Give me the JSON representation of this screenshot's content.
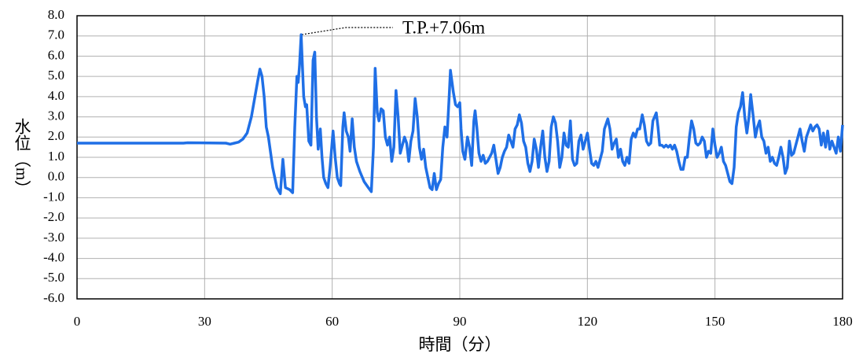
{
  "chart_data": {
    "type": "line",
    "xlabel": "時間（分）",
    "ylabel": "水位（m）",
    "annotation": "T.P.+7.06m",
    "color": "#1f6fe6",
    "grid": true,
    "xlim": [
      0,
      180
    ],
    "xticks": [
      0,
      30,
      60,
      90,
      120,
      150,
      180
    ],
    "ylim": [
      -6,
      8
    ],
    "yticks": [
      {
        "value": 8,
        "label": "8.0"
      },
      {
        "value": 7,
        "label": "7.0"
      },
      {
        "value": 6,
        "label": "6.0"
      },
      {
        "value": 5,
        "label": "5.0"
      },
      {
        "value": 4,
        "label": "4.0"
      },
      {
        "value": 3,
        "label": "3.0"
      },
      {
        "value": 2,
        "label": "2.0"
      },
      {
        "value": 1,
        "label": "1.0"
      },
      {
        "value": 0,
        "label": "0.0"
      },
      {
        "value": -1,
        "label": "-1.0"
      },
      {
        "value": -2,
        "label": "-2.0"
      },
      {
        "value": -3,
        "label": "-3.0"
      },
      {
        "value": -4,
        "label": "-4.0"
      },
      {
        "value": -5,
        "label": "-5.0"
      },
      {
        "value": -6,
        "label": "-6.0"
      }
    ],
    "x": [
      0,
      25,
      26,
      35,
      36,
      37,
      38,
      39,
      40,
      41,
      42,
      42.5,
      43,
      43.5,
      44,
      44.5,
      45,
      46,
      47,
      47.8,
      48.4,
      49,
      50,
      50.7,
      51.2,
      51.7,
      52,
      52.3,
      52.7,
      53,
      53.3,
      53.7,
      54,
      54.5,
      55,
      55.5,
      55.9,
      56.3,
      56.7,
      57.2,
      57.6,
      58,
      58.5,
      59,
      59.5,
      60.2,
      60.7,
      61.2,
      61.7,
      62,
      62.5,
      62.8,
      63.3,
      63.8,
      64.2,
      64.7,
      65.2,
      65.7,
      66.5,
      67.5,
      68.5,
      69.2,
      69.7,
      70.1,
      70.6,
      71,
      71.5,
      72,
      72.5,
      73,
      73.5,
      74,
      74.5,
      75,
      75.5,
      76,
      76.5,
      77,
      77.5,
      78,
      78.5,
      79,
      79.5,
      80,
      80.5,
      81,
      81.5,
      82,
      82.5,
      83,
      83.5,
      84,
      84.5,
      85,
      85.5,
      86,
      86.5,
      87,
      87.5,
      87.8,
      88.5,
      89,
      89.5,
      90,
      90.3,
      90.7,
      91.2,
      91.8,
      92.3,
      92.8,
      93.3,
      93.6,
      94,
      94.5,
      95,
      95.5,
      96,
      96.5,
      97.5,
      98,
      98.5,
      99,
      99.5,
      100,
      100.5,
      101,
      101.5,
      102,
      102.5,
      103,
      103.5,
      104,
      104.5,
      105,
      105.5,
      106,
      106.5,
      107,
      107.5,
      108,
      108.5,
      109,
      109.5,
      110,
      110.5,
      111,
      111.5,
      112,
      112.5,
      113,
      113.5,
      114,
      114.5,
      115,
      115.5,
      116,
      116.5,
      117,
      117.5,
      118,
      118.5,
      119,
      119.5,
      120,
      120.5,
      121,
      121.5,
      122,
      122.5,
      123,
      123.5,
      124,
      124.8,
      125.3,
      125.8,
      126.3,
      126.8,
      127.3,
      127.8,
      128.3,
      128.8,
      129.3,
      129.8,
      130.3,
      130.8,
      131.3,
      131.8,
      132.3,
      132.9,
      133.4,
      133.9,
      134.4,
      134.9,
      135.4,
      135.8,
      136.2,
      136.6,
      137,
      137.5,
      138,
      138.5,
      139,
      139.5,
      140,
      140.5,
      141,
      141.5,
      142,
      142.5,
      143,
      143.5,
      144,
      144.5,
      145,
      145.5,
      146,
      146.5,
      147,
      147.5,
      148,
      148.5,
      149,
      149.5,
      150,
      150.5,
      151,
      151.5,
      152,
      152.5,
      153,
      153.5,
      154,
      154.5,
      155,
      155.5,
      156,
      156.5,
      157,
      157.5,
      158,
      158.4,
      159,
      159.5,
      160,
      160.5,
      161,
      161.5,
      162,
      162.5,
      163,
      163.5,
      164,
      164.5,
      165,
      165.5,
      166,
      166.5,
      167,
      167.5,
      168,
      168.5,
      169,
      169.5,
      170,
      170.5,
      171,
      171.5,
      172,
      172.5,
      173,
      173.5,
      174,
      174.5,
      175,
      175.5,
      176,
      176.5,
      177,
      177.5,
      178,
      178.5,
      179,
      179.5,
      180
    ],
    "values": [
      1.7,
      1.7,
      1.72,
      1.7,
      1.65,
      1.7,
      1.75,
      1.9,
      2.2,
      3.0,
      4.2,
      4.8,
      5.36,
      5.0,
      4.0,
      2.5,
      2.0,
      0.5,
      -0.5,
      -0.8,
      0.9,
      -0.5,
      -0.6,
      -0.75,
      2.5,
      5.0,
      4.7,
      5.5,
      7.06,
      5.5,
      4.0,
      3.5,
      3.6,
      1.8,
      1.6,
      5.8,
      6.2,
      3.0,
      1.4,
      2.4,
      1.0,
      0.0,
      -0.3,
      -0.5,
      0.5,
      2.3,
      1.0,
      0.0,
      -0.3,
      -0.4,
      2.5,
      3.2,
      2.3,
      2.0,
      1.3,
      2.9,
      1.5,
      0.8,
      0.3,
      -0.2,
      -0.5,
      -0.7,
      1.5,
      5.4,
      3.2,
      2.8,
      3.4,
      3.3,
      2.0,
      1.6,
      2.0,
      0.8,
      1.5,
      4.3,
      3.0,
      1.2,
      1.6,
      2.0,
      1.7,
      0.8,
      1.8,
      2.3,
      3.9,
      3.0,
      1.5,
      0.9,
      1.4,
      0.5,
      0.0,
      -0.5,
      -0.6,
      0.2,
      -0.6,
      -0.3,
      -0.1,
      1.5,
      2.5,
      2.0,
      4.0,
      5.3,
      4.2,
      3.6,
      3.5,
      3.7,
      2.4,
      1.3,
      0.9,
      2.0,
      1.5,
      0.6,
      2.8,
      3.3,
      2.5,
      1.2,
      0.8,
      1.1,
      0.7,
      0.8,
      1.2,
      1.6,
      0.9,
      0.2,
      0.5,
      1.0,
      1.3,
      1.5,
      2.1,
      1.8,
      1.5,
      2.4,
      2.6,
      3.1,
      2.7,
      1.8,
      1.5,
      0.7,
      0.3,
      0.8,
      1.9,
      1.4,
      0.5,
      1.5,
      2.3,
      1.0,
      0.3,
      0.8,
      2.5,
      3.0,
      2.7,
      1.8,
      0.5,
      1.0,
      2.2,
      1.6,
      1.5,
      2.8,
      0.9,
      0.6,
      0.7,
      1.8,
      2.1,
      1.4,
      1.8,
      2.2,
      1.4,
      0.7,
      0.6,
      0.8,
      0.5,
      0.9,
      1.3,
      2.4,
      2.9,
      2.4,
      1.4,
      1.7,
      1.9,
      1.0,
      1.4,
      0.8,
      0.6,
      1.0,
      0.7,
      1.9,
      2.2,
      2.0,
      2.4,
      2.4,
      3.1,
      2.6,
      1.8,
      1.6,
      1.7,
      2.8,
      3.0,
      3.2,
      2.5,
      1.6,
      1.6,
      1.5,
      1.6,
      1.5,
      1.6,
      1.4,
      1.6,
      1.3,
      0.8,
      0.4,
      0.4,
      1.0,
      1.0,
      2.0,
      2.8,
      2.4,
      1.7,
      1.6,
      1.7,
      2.0,
      1.8,
      1.0,
      1.3,
      1.2,
      2.4,
      1.6,
      1.0,
      1.2,
      1.5,
      0.8,
      0.6,
      0.2,
      -0.2,
      -0.3,
      0.5,
      2.5,
      3.2,
      3.5,
      4.2,
      3.0,
      2.2,
      3.0,
      4.1,
      3.0,
      2.0,
      2.5,
      2.8,
      2.0,
      1.8,
      1.2,
      1.5,
      0.8,
      1.0,
      0.7,
      0.6,
      1.0,
      1.5,
      1.0,
      0.2,
      0.5,
      1.8,
      1.1,
      1.2,
      1.6,
      2.0,
      2.4,
      1.8,
      1.3,
      2.0,
      2.3,
      2.6,
      2.3,
      2.5,
      2.6,
      2.4,
      1.6,
      2.2,
      1.5,
      2.3,
      1.4,
      1.8,
      1.5,
      1.2,
      2.0,
      1.3,
      2.6
    ]
  }
}
